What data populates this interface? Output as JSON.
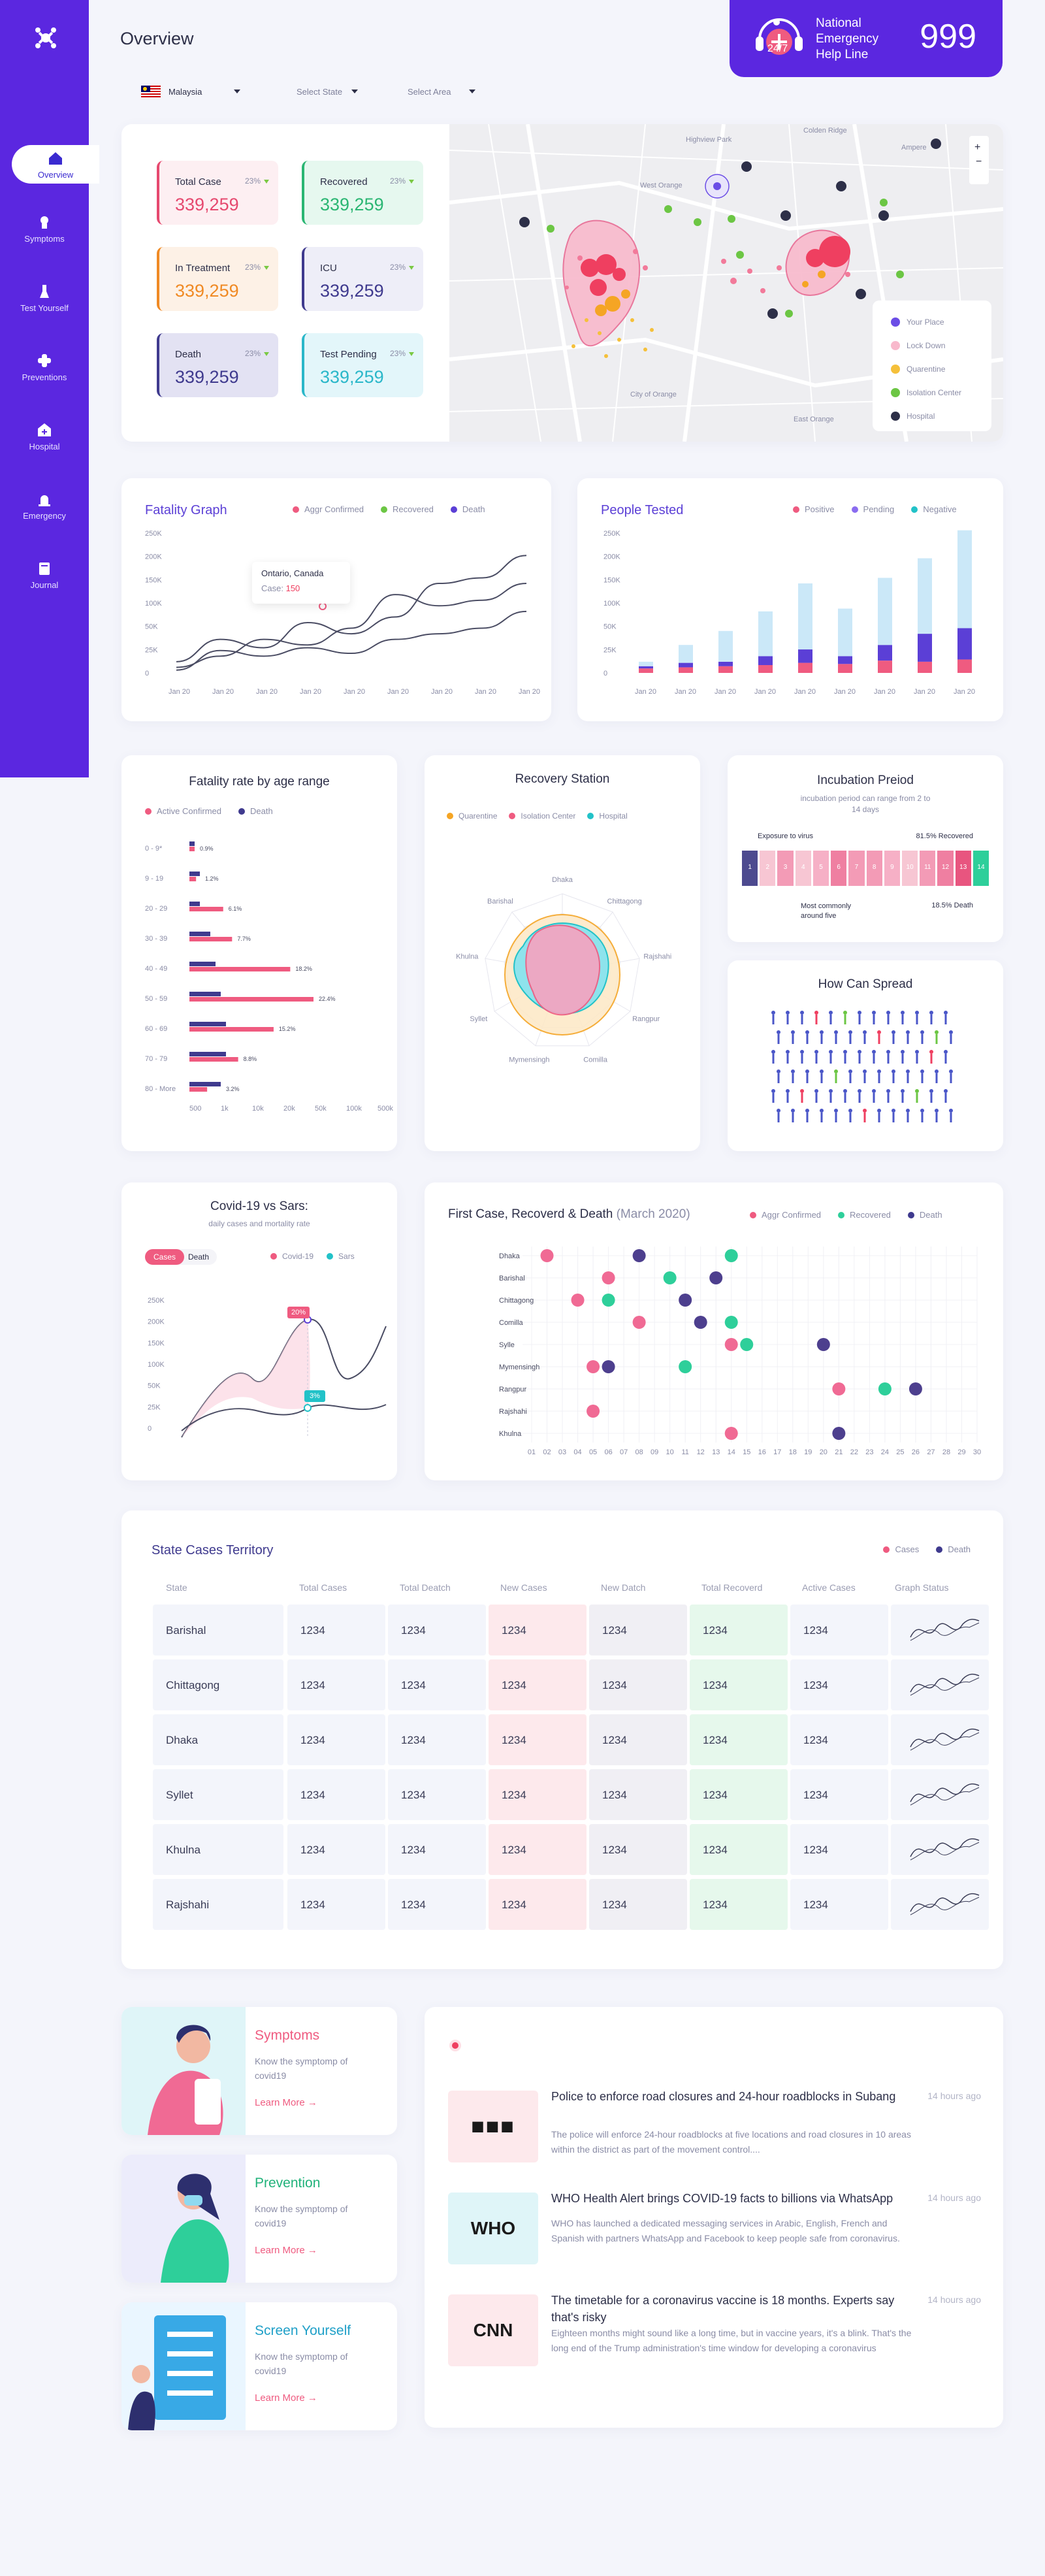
{
  "app": {
    "title": "Overview"
  },
  "nav": [
    {
      "label": "Overview",
      "icon": "home-icon",
      "active": true
    },
    {
      "label": "Symptoms",
      "icon": "symptoms-icon"
    },
    {
      "label": "Test Yourself",
      "icon": "test-icon"
    },
    {
      "label": "Preventions",
      "icon": "prevention-icon"
    },
    {
      "label": "Hospital",
      "icon": "hospital-icon"
    },
    {
      "label": "Emergency",
      "icon": "emergency-icon"
    },
    {
      "label": "Journal",
      "icon": "journal-icon"
    }
  ],
  "hotline": {
    "title": "National Emergency Help Line",
    "number": "999",
    "badge": "24/7"
  },
  "filters": {
    "country": "Malaysia",
    "state": "Select State",
    "area": "Select Area"
  },
  "stats": [
    {
      "label": "Total Case",
      "pct": "23%",
      "value": "339,259",
      "color": "#e6496f",
      "bg": "#fdeff2"
    },
    {
      "label": "Recovered",
      "pct": "23%",
      "value": "339,259",
      "color": "#2bb673",
      "bg": "#e6f8ef"
    },
    {
      "label": "In Treatment",
      "pct": "23%",
      "value": "339,259",
      "color": "#f08a24",
      "bg": "#fdf1e6"
    },
    {
      "label": "ICU",
      "pct": "23%",
      "value": "339,259",
      "color": "#3f3a8e",
      "bg": "#eeeef8"
    },
    {
      "label": "Death",
      "pct": "23%",
      "value": "339,259",
      "color": "#3f3a8e",
      "bg": "#e3e2f3"
    },
    {
      "label": "Test Pending",
      "pct": "23%",
      "value": "339,259",
      "color": "#2ab7c9",
      "bg": "#e3f6fa"
    }
  ],
  "map": {
    "labels": [
      "Colden Ridge",
      "Highview Park",
      "West Orange",
      "City of Orange",
      "East Orange",
      "Ampere"
    ],
    "legend": [
      "Your Place",
      "Lock Down",
      "Quarentine",
      "Isolation Center",
      "Hospital"
    ]
  },
  "fatality": {
    "title": "Fatality Graph",
    "legend": [
      "Aggr Confirmed",
      "Recovered",
      "Death"
    ],
    "tooltip": {
      "place": "Ontario, Canada",
      "label": "Case:",
      "value": "150"
    }
  },
  "tested": {
    "title": "People Tested",
    "legend": [
      "Positive",
      "Pending",
      "Negative"
    ]
  },
  "chart_data": [
    {
      "type": "line",
      "title": "Fatality Graph",
      "y_ticks": [
        "250K",
        "200K",
        "150K",
        "100K",
        "50K",
        "25K",
        "0"
      ],
      "x": [
        "Jan 20",
        "Jan 20",
        "Jan 20",
        "Jan 20",
        "Jan 20",
        "Jan 20",
        "Jan 20",
        "Jan 20",
        "Jan 20"
      ],
      "series": [
        {
          "name": "Aggr Confirmed",
          "values": [
            20,
            60,
            45,
            90,
            70,
            100,
            160,
            170,
            210
          ]
        },
        {
          "name": "Recovered",
          "values": [
            10,
            30,
            60,
            50,
            80,
            140,
            120,
            130,
            160
          ]
        },
        {
          "name": "Death",
          "values": [
            5,
            40,
            30,
            45,
            35,
            60,
            70,
            80,
            110
          ]
        }
      ]
    },
    {
      "type": "bar",
      "title": "People Tested",
      "y_ticks": [
        "250K",
        "200K",
        "150K",
        "100K",
        "50K",
        "25K",
        "0"
      ],
      "categories": [
        "Jan 20",
        "Jan 20",
        "Jan 20",
        "Jan 20",
        "Jan 20",
        "Jan 20",
        "Jan 20",
        "Jan 20",
        "Jan 20"
      ],
      "series": [
        {
          "name": "Positive",
          "values": [
            8,
            10,
            12,
            14,
            18,
            16,
            22,
            20,
            24
          ]
        },
        {
          "name": "Pending",
          "values": [
            12,
            18,
            20,
            30,
            42,
            30,
            50,
            70,
            80
          ]
        },
        {
          "name": "Negative",
          "values": [
            20,
            50,
            75,
            110,
            160,
            115,
            170,
            205,
            255
          ]
        }
      ]
    },
    {
      "type": "bar",
      "title": "Fatality rate by age range",
      "categories": [
        "0 - 9*",
        "9 - 19",
        "20 - 29",
        "30 - 39",
        "40 - 49",
        "50 - 59",
        "60 - 69",
        "70 - 79",
        "80 - More"
      ],
      "series": [
        {
          "name": "Active Confirmed",
          "values": [
            0.9,
            1.2,
            6.1,
            7.7,
            18.2,
            22.4,
            15.2,
            8.8,
            3.2
          ],
          "labels": [
            "0.9%",
            "1.2%",
            "6.1%",
            "7.7%",
            "18.2%",
            "22.4%",
            "15.2%",
            "8.8%",
            "3.2%"
          ]
        },
        {
          "name": "Death",
          "values": [
            1,
            2,
            2,
            4,
            5,
            6,
            7,
            7,
            6
          ]
        }
      ],
      "x_ticks": [
        "500",
        "1k",
        "10k",
        "20k",
        "50k",
        "100k",
        "500k"
      ]
    },
    {
      "type": "line",
      "title": "Covid-19 vs Sars:",
      "subtitle": "daily cases and mortality rate",
      "y_ticks": [
        "250K",
        "200K",
        "150K",
        "100K",
        "50K",
        "25K",
        "0"
      ],
      "series": [
        {
          "name": "Covid-19",
          "label": "20%"
        },
        {
          "name": "Sars",
          "label": "3%"
        }
      ]
    },
    {
      "type": "scatter",
      "title": "First Case, Recoverd & Death",
      "subtitle": "(March 2020)",
      "categories": [
        "Dhaka",
        "Barishal",
        "Chittagong",
        "Comilla",
        "Sylle",
        "Mymensingh",
        "Rangpur",
        "Rajshahi",
        "Khulna"
      ],
      "x_ticks": [
        "01",
        "02",
        "03",
        "04",
        "05",
        "06",
        "07",
        "08",
        "09",
        "10",
        "11",
        "12",
        "13",
        "14",
        "15",
        "16",
        "17",
        "18",
        "19",
        "20",
        "21",
        "22",
        "23",
        "24",
        "25",
        "26",
        "27",
        "28",
        "29",
        "30"
      ],
      "series": [
        {
          "name": "Aggr Confirmed",
          "points": [
            [
              2,
              "Dhaka"
            ],
            [
              6,
              "Barishal"
            ],
            [
              4,
              "Chittagong"
            ],
            [
              8,
              "Comilla"
            ],
            [
              14,
              "Sylle"
            ],
            [
              5,
              "Mymensingh"
            ],
            [
              21,
              "Rangpur"
            ],
            [
              5,
              "Rajshahi"
            ],
            [
              14,
              "Khulna"
            ]
          ]
        },
        {
          "name": "Recovered",
          "points": [
            [
              14,
              "Dhaka"
            ],
            [
              10,
              "Barishal"
            ],
            [
              6,
              "Chittagong"
            ],
            [
              14,
              "Comilla"
            ],
            [
              15,
              "Sylle"
            ],
            [
              11,
              "Mymensingh"
            ],
            [
              24,
              "Rangpur"
            ]
          ]
        },
        {
          "name": "Death",
          "points": [
            [
              8,
              "Dhaka"
            ],
            [
              13,
              "Barishal"
            ],
            [
              11,
              "Chittagong"
            ],
            [
              12,
              "Comilla"
            ],
            [
              20,
              "Sylle"
            ],
            [
              6,
              "Mymensingh"
            ],
            [
              26,
              "Rangpur"
            ],
            [
              21,
              "Khulna"
            ]
          ]
        }
      ]
    }
  ],
  "age": {
    "title": "Fatality rate by age range",
    "legend": [
      "Active Confirmed",
      "Death"
    ]
  },
  "recovery": {
    "title": "Recovery Station",
    "legend": [
      "Quarentine",
      "Isolation Center",
      "Hospital"
    ],
    "axes": [
      "Dhaka",
      "Chittagong",
      "Rajshahi",
      "Rangpur",
      "Comilla",
      "Mymensingh",
      "Syllet",
      "Khulna",
      "Barishal"
    ]
  },
  "incubation": {
    "title": "Incubation Preiod",
    "subtitle": "incubation period can range from 2 to 14 days",
    "exposure": "Exposure to virus",
    "recovered": "81.5% Recovered",
    "common": "Most commonly around five",
    "death": "18.5% Death",
    "days": [
      "1",
      "2",
      "3",
      "4",
      "5",
      "6",
      "7",
      "8",
      "9",
      "10",
      "11",
      "12",
      "13",
      "14"
    ]
  },
  "spread": {
    "title": "How Can Spread"
  },
  "sars": {
    "title": "Covid-19 vs Sars:",
    "subtitle": "daily cases and mortality rate",
    "tab1": "Cases",
    "tab2": "Death",
    "legend": [
      "Covid-19",
      "Sars"
    ],
    "tag1": "20%",
    "tag2": "3%"
  },
  "first": {
    "title": "First Case, Recoverd & Death",
    "subtitle": "(March 2020)",
    "legend": [
      "Aggr Confirmed",
      "Recovered",
      "Death"
    ]
  },
  "table": {
    "title": "State Cases Territory",
    "legend": [
      "Cases",
      "Death"
    ],
    "headers": [
      "State",
      "Total Cases",
      "Total Deatch",
      "New Cases",
      "New Datch",
      "Total Recoverd",
      "Active Cases",
      "Graph Status"
    ],
    "rows": [
      [
        "Barishal",
        "1234",
        "1234",
        "1234",
        "1234",
        "1234",
        "1234"
      ],
      [
        "Chittagong",
        "1234",
        "1234",
        "1234",
        "1234",
        "1234",
        "1234"
      ],
      [
        "Dhaka",
        "1234",
        "1234",
        "1234",
        "1234",
        "1234",
        "1234"
      ],
      [
        "Syllet",
        "1234",
        "1234",
        "1234",
        "1234",
        "1234",
        "1234"
      ],
      [
        "Khulna",
        "1234",
        "1234",
        "1234",
        "1234",
        "1234",
        "1234"
      ],
      [
        "Rajshahi",
        "1234",
        "1234",
        "1234",
        "1234",
        "1234",
        "1234"
      ]
    ]
  },
  "info": [
    {
      "title": "Symptoms",
      "desc": "Know the symptomp of covid19",
      "link": "Learn More",
      "color": "#ef5b80"
    },
    {
      "title": "Prevention",
      "desc": "Know the symptomp of covid19",
      "link": "Learn More",
      "color": "#20b27a"
    },
    {
      "title": "Screen Yourself",
      "desc": "Know the symptomp of covid19",
      "link": "Learn More",
      "color": "#20a0c8"
    }
  ],
  "news": [
    {
      "title": "Police to enforce road closures and 24-hour roadblocks in Subang",
      "desc": "The police will enforce 24-hour roadblocks at five locations and road closures in 10 areas within the district as part of the movement control....",
      "time": "14 hours ago",
      "source": "■■■"
    },
    {
      "title": "WHO Health Alert brings COVID-19 facts to billions via WhatsApp",
      "desc": "WHO has launched a dedicated messaging services in Arabic, English, French and Spanish with partners WhatsApp and Facebook to keep people safe from coronavirus.",
      "time": "14 hours ago",
      "source": "WHO"
    },
    {
      "title": "The timetable for a coronavirus vaccine is 18 months. Experts say that's risky",
      "desc": "Eighteen months might sound like a long time, but in vaccine years, it's a blink. That's the long end of the Trump administration's time window for developing a coronavirus",
      "time": "14 hours ago",
      "source": "CNN"
    }
  ]
}
